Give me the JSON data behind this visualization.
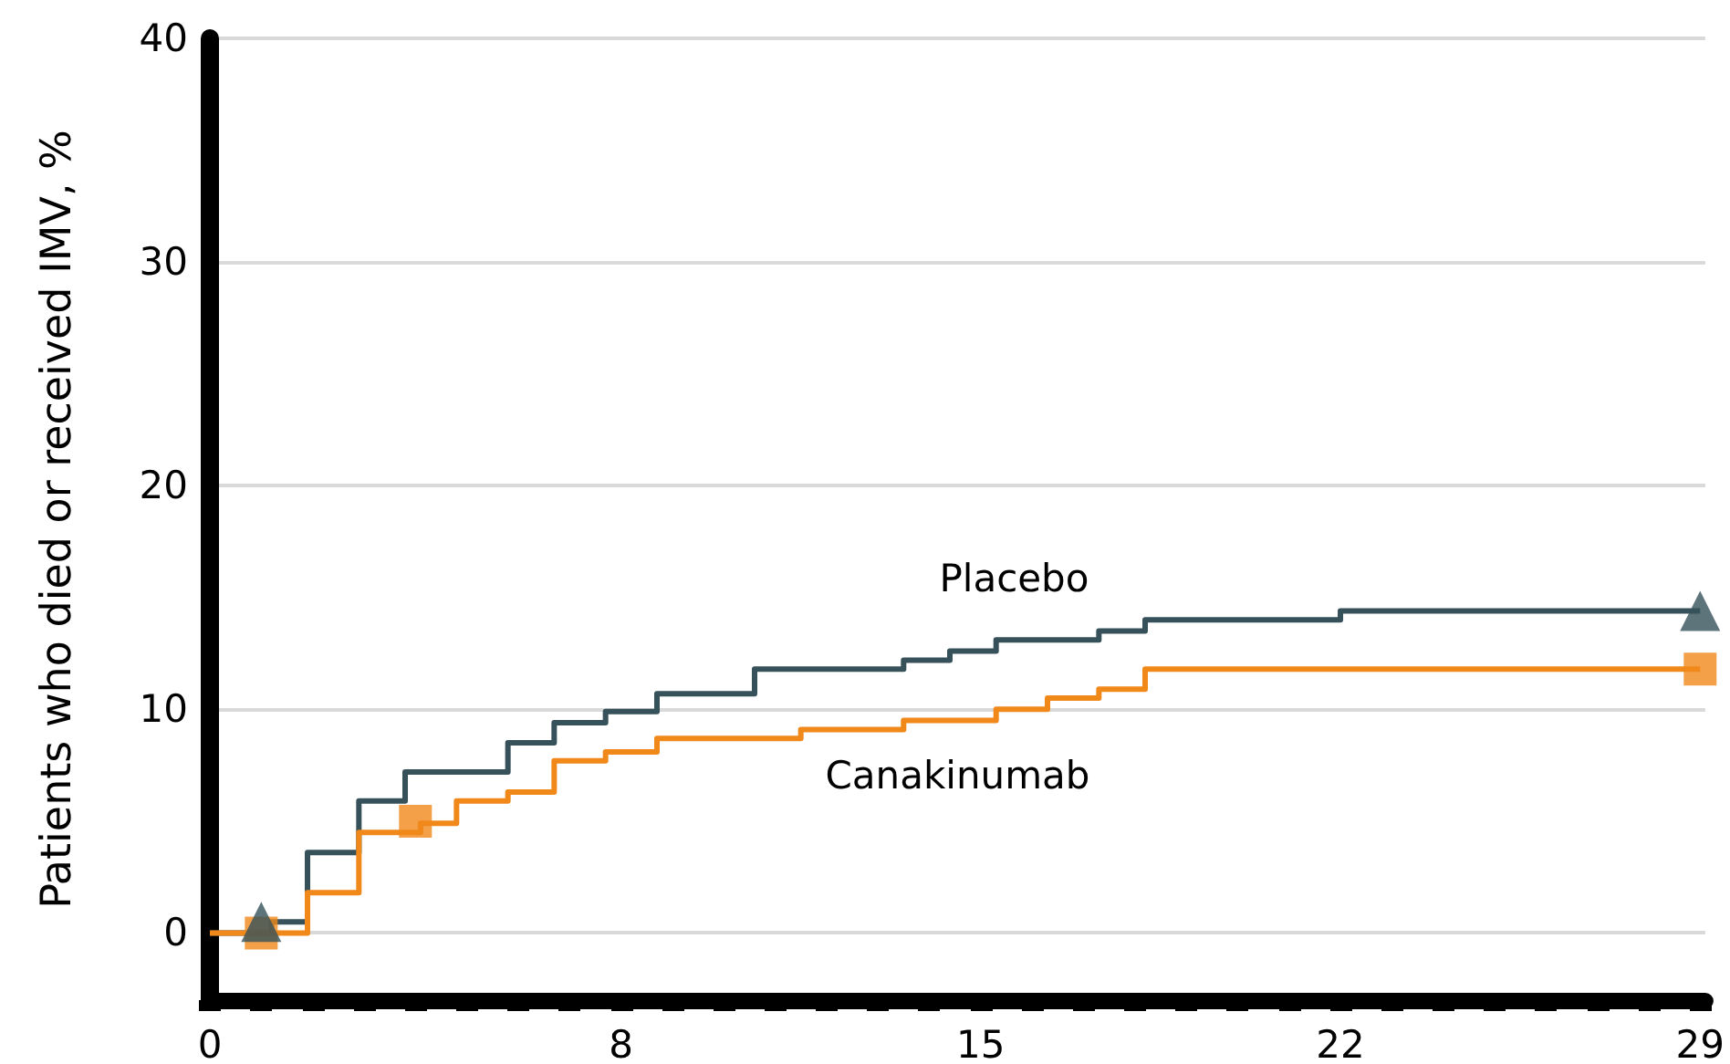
{
  "chart_data": {
    "type": "step",
    "ylabel": "Patients who died or received IMV, %",
    "xlim": [
      0,
      29.1
    ],
    "ylim": [
      -3,
      40
    ],
    "xticks": [
      0,
      {
        "value": 1,
        "label": null
      },
      {
        "value": 2,
        "label": null
      },
      {
        "value": 3,
        "label": null
      },
      {
        "value": 4,
        "label": null
      },
      {
        "value": 5,
        "label": null
      },
      {
        "value": 6,
        "label": null
      },
      {
        "value": 7,
        "label": null
      },
      8,
      {
        "value": 9,
        "label": null
      },
      {
        "value": 10,
        "label": null
      },
      {
        "value": 11,
        "label": null
      },
      {
        "value": 12,
        "label": null
      },
      {
        "value": 13,
        "label": null
      },
      {
        "value": 14,
        "label": null
      },
      15,
      {
        "value": 16,
        "label": null
      },
      {
        "value": 17,
        "label": null
      },
      {
        "value": 18,
        "label": null
      },
      {
        "value": 19,
        "label": null
      },
      {
        "value": 20,
        "label": null
      },
      {
        "value": 21,
        "label": null
      },
      22,
      {
        "value": 23,
        "label": null
      },
      {
        "value": 24,
        "label": null
      },
      {
        "value": 25,
        "label": null
      },
      {
        "value": 26,
        "label": null
      },
      {
        "value": 27,
        "label": null
      },
      {
        "value": 28,
        "label": null
      },
      29
    ],
    "yticks": [
      0,
      10,
      20,
      30,
      40
    ],
    "grid": "y",
    "legend": false,
    "marker": "none",
    "line_style": "solid",
    "series": [
      {
        "name": "Placebo",
        "color": "#36515a",
        "x": [
          0,
          1.2,
          1.9,
          2.9,
          3.8,
          5.8,
          6.7,
          7.7,
          8.7,
          10.6,
          13.5,
          14.4,
          15.3,
          17.3,
          18.2,
          22,
          29
        ],
        "values": [
          0,
          0.5,
          3.6,
          5.9,
          7.2,
          8.5,
          9.4,
          9.9,
          10.7,
          11.8,
          12.2,
          12.6,
          13.1,
          13.5,
          14.0,
          14.4,
          14.4
        ]
      },
      {
        "name": "Canakinumab",
        "color": "#f0881a",
        "x": [
          0,
          1.9,
          2.9,
          4.1,
          4.8,
          5.8,
          6.7,
          7.7,
          8.7,
          11.5,
          13.5,
          15.3,
          16.3,
          17.3,
          18.2,
          29
        ],
        "values": [
          0,
          1.8,
          4.5,
          4.9,
          5.9,
          6.3,
          7.7,
          8.1,
          8.7,
          9.1,
          9.5,
          10.0,
          10.5,
          10.9,
          11.8,
          11.8
        ]
      },
      {
        "type": "scatter",
        "marker": "square",
        "color": "#f0881a",
        "x": [
          1,
          4,
          29
        ],
        "values": [
          0,
          5.0,
          11.8
        ]
      },
      {
        "type": "scatter",
        "marker": "triangle",
        "color": "#36515a",
        "x": [
          1,
          29
        ],
        "values": [
          0.5,
          14.4
        ]
      }
    ]
  }
}
